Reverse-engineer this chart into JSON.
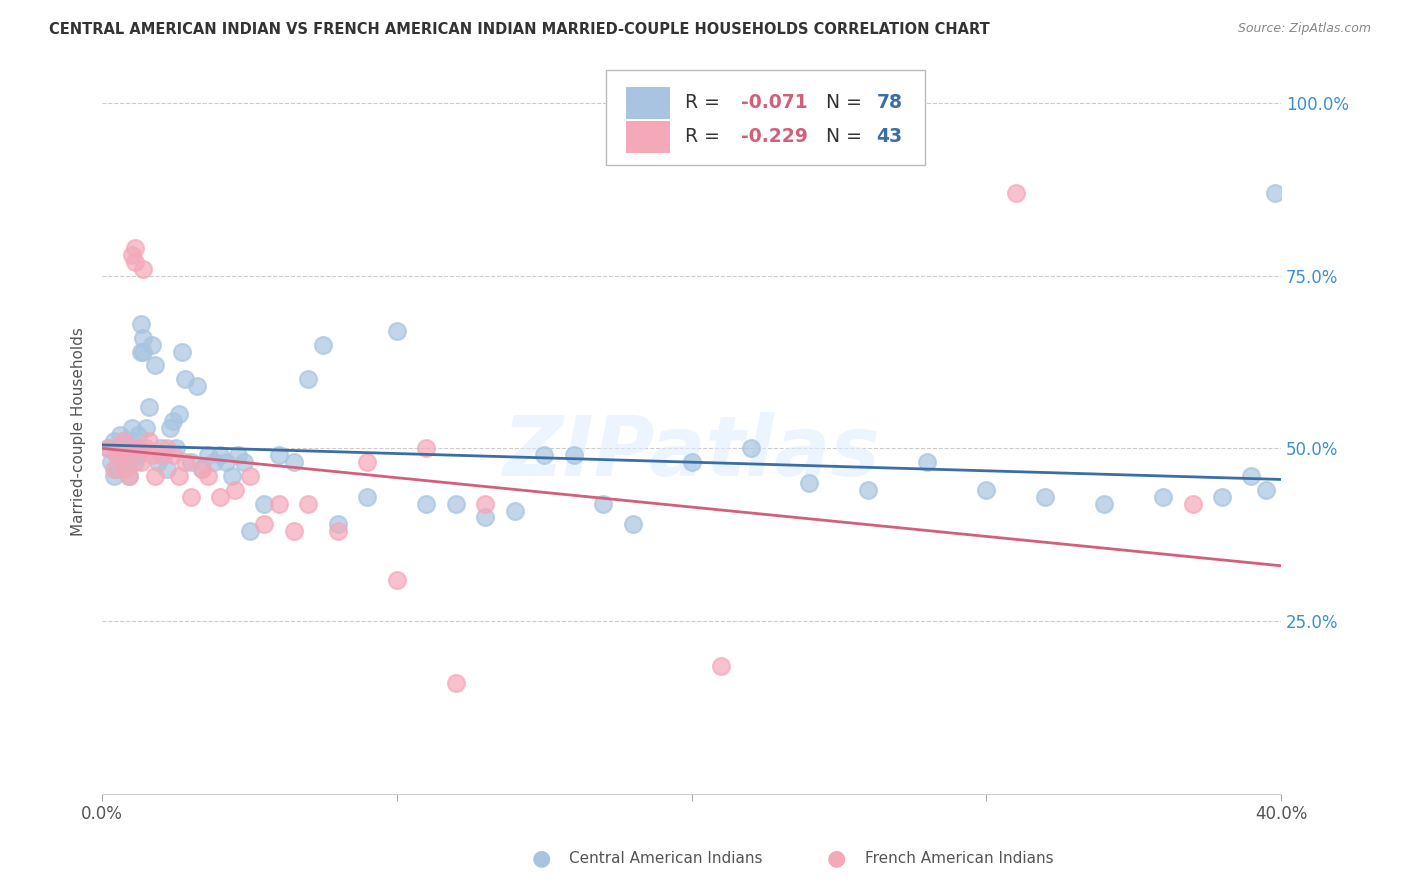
{
  "title": "CENTRAL AMERICAN INDIAN VS FRENCH AMERICAN INDIAN MARRIED-COUPLE HOUSEHOLDS CORRELATION CHART",
  "source": "Source: ZipAtlas.com",
  "ylabel": "Married-couple Households",
  "xlim": [
    0.0,
    0.4
  ],
  "ylim": [
    0.0,
    1.05
  ],
  "yticks": [
    0.25,
    0.5,
    0.75,
    1.0
  ],
  "ytick_labels": [
    "25.0%",
    "50.0%",
    "75.0%",
    "100.0%"
  ],
  "xticks": [
    0.0,
    0.1,
    0.2,
    0.3,
    0.4
  ],
  "xtick_labels": [
    "0.0%",
    "",
    "",
    "",
    "40.0%"
  ],
  "blue_R": -0.071,
  "blue_N": 78,
  "pink_R": -0.229,
  "pink_N": 43,
  "blue_color": "#A8C4E0",
  "pink_color": "#F4A8B8",
  "blue_line_color": "#3A6EA5",
  "pink_line_color": "#D45F7A",
  "legend_R_color": "#D45F7A",
  "legend_N_color": "#3A6EA5",
  "watermark": "ZIPatlas",
  "blue_x": [
    0.002,
    0.003,
    0.004,
    0.004,
    0.005,
    0.005,
    0.006,
    0.006,
    0.007,
    0.007,
    0.008,
    0.008,
    0.009,
    0.009,
    0.01,
    0.01,
    0.011,
    0.011,
    0.012,
    0.012,
    0.013,
    0.013,
    0.014,
    0.014,
    0.015,
    0.016,
    0.017,
    0.018,
    0.019,
    0.02,
    0.021,
    0.022,
    0.023,
    0.024,
    0.025,
    0.026,
    0.027,
    0.028,
    0.03,
    0.032,
    0.034,
    0.036,
    0.038,
    0.04,
    0.042,
    0.044,
    0.046,
    0.048,
    0.05,
    0.055,
    0.06,
    0.065,
    0.07,
    0.075,
    0.08,
    0.09,
    0.1,
    0.11,
    0.12,
    0.13,
    0.14,
    0.15,
    0.16,
    0.17,
    0.18,
    0.2,
    0.22,
    0.24,
    0.26,
    0.28,
    0.3,
    0.32,
    0.34,
    0.36,
    0.38,
    0.39,
    0.395,
    0.398
  ],
  "blue_y": [
    0.5,
    0.48,
    0.46,
    0.51,
    0.49,
    0.47,
    0.5,
    0.52,
    0.49,
    0.51,
    0.48,
    0.5,
    0.46,
    0.48,
    0.51,
    0.53,
    0.5,
    0.48,
    0.52,
    0.49,
    0.64,
    0.68,
    0.64,
    0.66,
    0.53,
    0.56,
    0.65,
    0.62,
    0.48,
    0.5,
    0.49,
    0.47,
    0.53,
    0.54,
    0.5,
    0.55,
    0.64,
    0.6,
    0.48,
    0.59,
    0.47,
    0.49,
    0.48,
    0.49,
    0.48,
    0.46,
    0.49,
    0.48,
    0.38,
    0.42,
    0.49,
    0.48,
    0.6,
    0.65,
    0.39,
    0.43,
    0.67,
    0.42,
    0.42,
    0.4,
    0.41,
    0.49,
    0.49,
    0.42,
    0.39,
    0.48,
    0.5,
    0.45,
    0.44,
    0.48,
    0.44,
    0.43,
    0.42,
    0.43,
    0.43,
    0.46,
    0.44,
    0.87
  ],
  "pink_x": [
    0.002,
    0.004,
    0.005,
    0.006,
    0.007,
    0.008,
    0.008,
    0.009,
    0.01,
    0.01,
    0.011,
    0.011,
    0.012,
    0.013,
    0.014,
    0.015,
    0.016,
    0.017,
    0.018,
    0.02,
    0.022,
    0.024,
    0.026,
    0.028,
    0.03,
    0.034,
    0.036,
    0.04,
    0.045,
    0.05,
    0.055,
    0.06,
    0.065,
    0.07,
    0.08,
    0.09,
    0.1,
    0.11,
    0.12,
    0.13,
    0.21,
    0.31,
    0.37
  ],
  "pink_y": [
    0.5,
    0.47,
    0.49,
    0.5,
    0.51,
    0.47,
    0.49,
    0.46,
    0.5,
    0.78,
    0.79,
    0.77,
    0.5,
    0.48,
    0.76,
    0.5,
    0.51,
    0.49,
    0.46,
    0.49,
    0.5,
    0.49,
    0.46,
    0.48,
    0.43,
    0.47,
    0.46,
    0.43,
    0.44,
    0.46,
    0.39,
    0.42,
    0.38,
    0.42,
    0.38,
    0.48,
    0.31,
    0.5,
    0.16,
    0.42,
    0.185,
    0.87,
    0.42
  ]
}
